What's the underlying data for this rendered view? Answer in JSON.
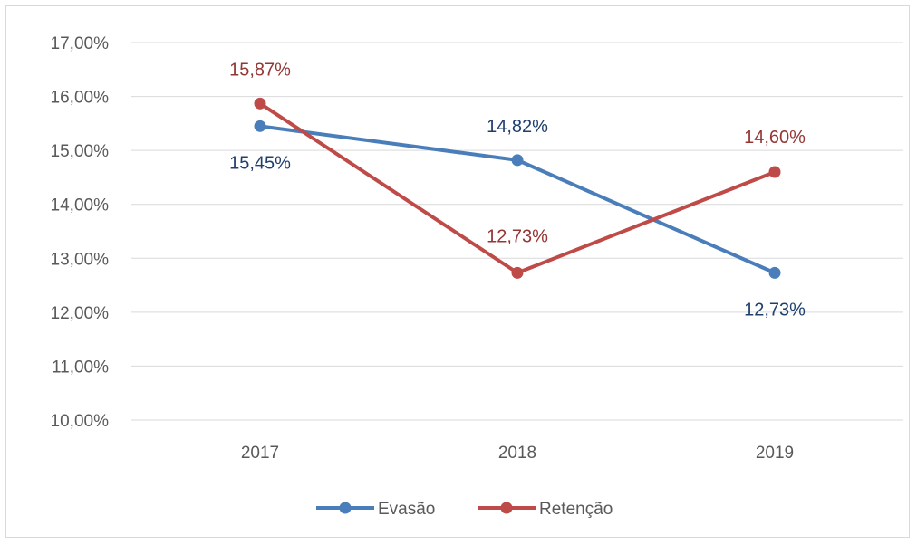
{
  "chart_data": {
    "type": "line",
    "categories": [
      "2017",
      "2018",
      "2019"
    ],
    "ylim": [
      0.1,
      0.17
    ],
    "y_ticks": [
      "10,00%",
      "11,00%",
      "12,00%",
      "13,00%",
      "14,00%",
      "15,00%",
      "16,00%",
      "17,00%"
    ],
    "grid": "horizontal",
    "legend_position": "bottom",
    "series": [
      {
        "name": "Evasão",
        "values": [
          0.1545,
          0.1482,
          0.1273
        ],
        "labels": [
          "15,45%",
          "14,82%",
          "12,73%"
        ],
        "color": "#4a7ebb"
      },
      {
        "name": "Retenção",
        "values": [
          0.1587,
          0.1273,
          0.146
        ],
        "labels": [
          "15,87%",
          "12,73%",
          "14,60%"
        ],
        "color": "#be4b48"
      }
    ],
    "label_colors": {
      "Evasão": "#1f3f6e",
      "Retenção": "#943634"
    }
  }
}
